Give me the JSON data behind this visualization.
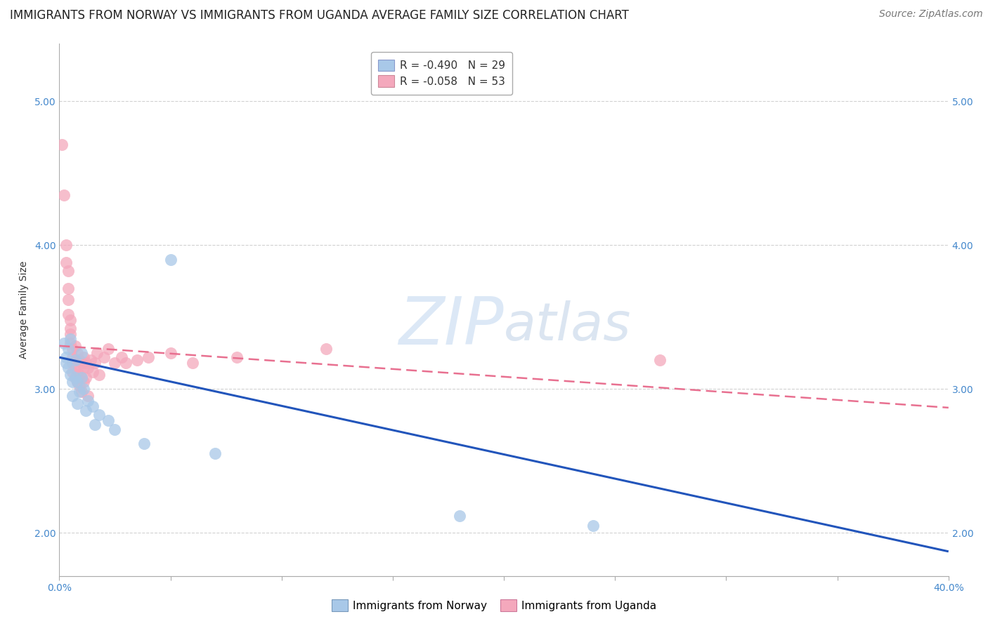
{
  "title": "IMMIGRANTS FROM NORWAY VS IMMIGRANTS FROM UGANDA AVERAGE FAMILY SIZE CORRELATION CHART",
  "source": "Source: ZipAtlas.com",
  "ylabel": "Average Family Size",
  "xlim": [
    0.0,
    0.4
  ],
  "ylim": [
    1.7,
    5.4
  ],
  "yticks": [
    2.0,
    3.0,
    4.0,
    5.0
  ],
  "xticks": [
    0.0,
    0.05,
    0.1,
    0.15,
    0.2,
    0.25,
    0.3,
    0.35,
    0.4
  ],
  "xticklabels": [
    "0.0%",
    "",
    "",
    "",
    "",
    "",
    "",
    "",
    "40.0%"
  ],
  "norway_R": "-0.490",
  "norway_N": "29",
  "uganda_R": "-0.058",
  "uganda_N": "53",
  "norway_color": "#a8c8e8",
  "uganda_color": "#f4a8bc",
  "norway_line_color": "#2255bb",
  "uganda_line_color": "#e87090",
  "norway_scatter": [
    [
      0.002,
      3.32
    ],
    [
      0.003,
      3.22
    ],
    [
      0.003,
      3.18
    ],
    [
      0.004,
      3.28
    ],
    [
      0.004,
      3.15
    ],
    [
      0.005,
      3.35
    ],
    [
      0.005,
      3.1
    ],
    [
      0.006,
      3.05
    ],
    [
      0.006,
      2.95
    ],
    [
      0.007,
      3.2
    ],
    [
      0.007,
      3.08
    ],
    [
      0.008,
      3.05
    ],
    [
      0.008,
      2.9
    ],
    [
      0.009,
      2.98
    ],
    [
      0.01,
      3.25
    ],
    [
      0.01,
      3.08
    ],
    [
      0.011,
      3.0
    ],
    [
      0.012,
      2.85
    ],
    [
      0.013,
      2.92
    ],
    [
      0.015,
      2.88
    ],
    [
      0.016,
      2.75
    ],
    [
      0.018,
      2.82
    ],
    [
      0.022,
      2.78
    ],
    [
      0.025,
      2.72
    ],
    [
      0.038,
      2.62
    ],
    [
      0.05,
      3.9
    ],
    [
      0.07,
      2.55
    ],
    [
      0.18,
      2.12
    ],
    [
      0.24,
      2.05
    ]
  ],
  "uganda_scatter": [
    [
      0.001,
      4.7
    ],
    [
      0.002,
      4.35
    ],
    [
      0.003,
      4.0
    ],
    [
      0.003,
      3.88
    ],
    [
      0.004,
      3.82
    ],
    [
      0.004,
      3.7
    ],
    [
      0.004,
      3.62
    ],
    [
      0.004,
      3.52
    ],
    [
      0.005,
      3.48
    ],
    [
      0.005,
      3.42
    ],
    [
      0.005,
      3.38
    ],
    [
      0.005,
      3.32
    ],
    [
      0.006,
      3.28
    ],
    [
      0.006,
      3.22
    ],
    [
      0.006,
      3.18
    ],
    [
      0.006,
      3.12
    ],
    [
      0.007,
      3.3
    ],
    [
      0.007,
      3.2
    ],
    [
      0.007,
      3.15
    ],
    [
      0.007,
      3.08
    ],
    [
      0.008,
      3.25
    ],
    [
      0.008,
      3.12
    ],
    [
      0.008,
      3.05
    ],
    [
      0.009,
      3.2
    ],
    [
      0.009,
      3.1
    ],
    [
      0.009,
      3.02
    ],
    [
      0.01,
      3.18
    ],
    [
      0.01,
      3.08
    ],
    [
      0.01,
      2.98
    ],
    [
      0.011,
      3.22
    ],
    [
      0.011,
      3.15
    ],
    [
      0.011,
      3.05
    ],
    [
      0.012,
      3.18
    ],
    [
      0.012,
      3.08
    ],
    [
      0.013,
      3.15
    ],
    [
      0.013,
      2.95
    ],
    [
      0.014,
      3.2
    ],
    [
      0.015,
      3.12
    ],
    [
      0.016,
      3.18
    ],
    [
      0.017,
      3.25
    ],
    [
      0.018,
      3.1
    ],
    [
      0.02,
      3.22
    ],
    [
      0.022,
      3.28
    ],
    [
      0.025,
      3.18
    ],
    [
      0.028,
      3.22
    ],
    [
      0.03,
      3.18
    ],
    [
      0.035,
      3.2
    ],
    [
      0.04,
      3.22
    ],
    [
      0.05,
      3.25
    ],
    [
      0.06,
      3.18
    ],
    [
      0.08,
      3.22
    ],
    [
      0.12,
      3.28
    ],
    [
      0.27,
      3.2
    ]
  ],
  "watermark_zip": "ZIP",
  "watermark_atlas": "atlas",
  "norway_trend": [
    3.22,
    1.87
  ],
  "uganda_trend": [
    3.3,
    2.87
  ],
  "title_fontsize": 12,
  "axis_label_fontsize": 10,
  "tick_fontsize": 10,
  "legend_fontsize": 11,
  "source_fontsize": 10,
  "background_color": "#ffffff",
  "grid_color": "#cccccc",
  "tick_color": "#4488cc",
  "text_color": "#333333"
}
